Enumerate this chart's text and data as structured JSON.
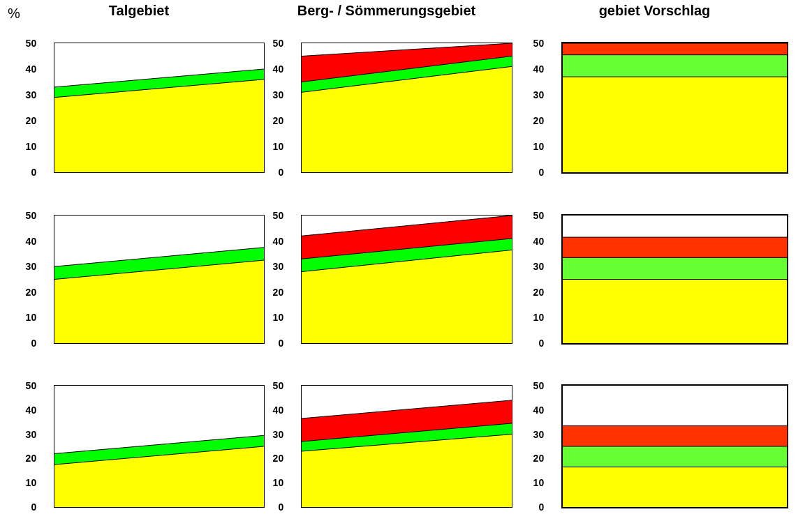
{
  "chart_data": [
    {
      "type": "area",
      "title": "Talgebiet",
      "ylabel": "%",
      "stacked": true,
      "grid": false,
      "tick_labels": "y",
      "categories": [
        null,
        null
      ],
      "ylim": [
        0,
        50
      ],
      "yticks": [
        0,
        10,
        20,
        30,
        40,
        50
      ],
      "series": [
        {
          "color": "#ffff00",
          "values": [
            29,
            36
          ]
        },
        {
          "color": "#00ff00",
          "values": [
            4,
            4
          ]
        }
      ]
    },
    {
      "type": "area",
      "title": "Berg- / Sömmerungsgebiet",
      "stacked": true,
      "grid": false,
      "tick_labels": "y",
      "categories": [
        null,
        null
      ],
      "ylim": [
        0,
        50
      ],
      "yticks": [
        0,
        10,
        20,
        30,
        40,
        50
      ],
      "series": [
        {
          "color": "#ffff00",
          "values": [
            31,
            41
          ]
        },
        {
          "color": "#00ff00",
          "values": [
            4,
            4
          ]
        },
        {
          "color": "#ff0000",
          "values": [
            10,
            5
          ]
        }
      ]
    },
    {
      "type": "area",
      "title": "gebiet Vorschlag",
      "stacked": true,
      "grid": false,
      "tick_labels": "y",
      "categories": [
        null,
        null
      ],
      "ylim": [
        0,
        50
      ],
      "yticks": [
        0,
        10,
        20,
        30,
        40,
        50
      ],
      "series": [
        {
          "color": "#ffff00",
          "values": [
            37,
            37
          ]
        },
        {
          "color": "#66ff33",
          "values": [
            8.5,
            8.5
          ]
        },
        {
          "color": "#ff3300",
          "values": [
            4.5,
            4.5
          ]
        }
      ]
    },
    {
      "type": "area",
      "stacked": true,
      "grid": false,
      "tick_labels": "y",
      "categories": [
        null,
        null
      ],
      "ylim": [
        0,
        50
      ],
      "yticks": [
        0,
        10,
        20,
        30,
        40,
        50
      ],
      "series": [
        {
          "color": "#ffff00",
          "values": [
            25,
            32.5
          ]
        },
        {
          "color": "#00ff00",
          "values": [
            5,
            5
          ]
        }
      ]
    },
    {
      "type": "area",
      "stacked": true,
      "grid": false,
      "tick_labels": "y",
      "categories": [
        null,
        null
      ],
      "ylim": [
        0,
        50
      ],
      "yticks": [
        0,
        10,
        20,
        30,
        40,
        50
      ],
      "series": [
        {
          "color": "#ffff00",
          "values": [
            28,
            36.5
          ]
        },
        {
          "color": "#00ff00",
          "values": [
            5,
            4.5
          ]
        },
        {
          "color": "#ff0000",
          "values": [
            9,
            9
          ]
        }
      ]
    },
    {
      "type": "area",
      "stacked": true,
      "grid": false,
      "tick_labels": "y",
      "categories": [
        null,
        null
      ],
      "ylim": [
        0,
        50
      ],
      "yticks": [
        0,
        10,
        20,
        30,
        40,
        50
      ],
      "series": [
        {
          "color": "#ffff00",
          "values": [
            25,
            25
          ]
        },
        {
          "color": "#66ff33",
          "values": [
            8.5,
            8.5
          ]
        },
        {
          "color": "#ff3300",
          "values": [
            8,
            8
          ]
        }
      ]
    },
    {
      "type": "area",
      "stacked": true,
      "grid": false,
      "tick_labels": "y",
      "categories": [
        null,
        null
      ],
      "ylim": [
        0,
        50
      ],
      "yticks": [
        0,
        10,
        20,
        30,
        40,
        50
      ],
      "series": [
        {
          "color": "#ffff00",
          "values": [
            17.5,
            25
          ]
        },
        {
          "color": "#00ff00",
          "values": [
            4.5,
            4.5
          ]
        }
      ]
    },
    {
      "type": "area",
      "stacked": true,
      "grid": false,
      "tick_labels": "y",
      "categories": [
        null,
        null
      ],
      "ylim": [
        0,
        50
      ],
      "yticks": [
        0,
        10,
        20,
        30,
        40,
        50
      ],
      "series": [
        {
          "color": "#ffff00",
          "values": [
            23,
            30
          ]
        },
        {
          "color": "#00ff00",
          "values": [
            4,
            4.5
          ]
        },
        {
          "color": "#ff0000",
          "values": [
            9.5,
            9.5
          ]
        }
      ]
    },
    {
      "type": "area",
      "stacked": true,
      "grid": false,
      "tick_labels": "y",
      "categories": [
        null,
        null
      ],
      "ylim": [
        0,
        50
      ],
      "yticks": [
        0,
        10,
        20,
        30,
        40,
        50
      ],
      "series": [
        {
          "color": "#ffff00",
          "values": [
            16.5,
            16.5
          ]
        },
        {
          "color": "#66ff33",
          "values": [
            8.5,
            8.5
          ]
        },
        {
          "color": "#ff3300",
          "values": [
            8.5,
            8.5
          ]
        }
      ]
    }
  ]
}
